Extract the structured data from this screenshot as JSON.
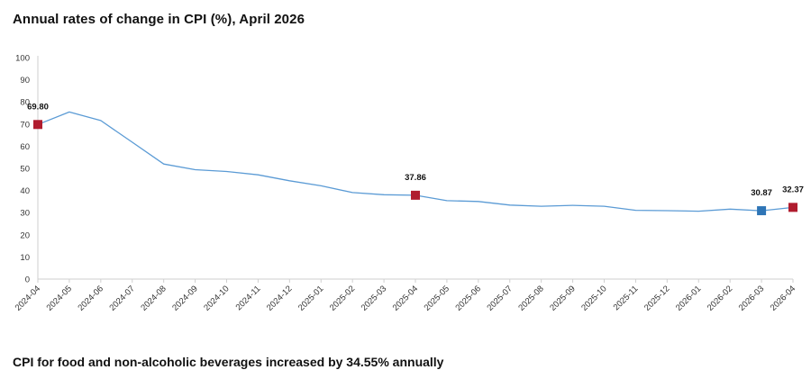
{
  "header": {
    "title": "Annual rates of change in CPI (%), April 2026"
  },
  "footer": {
    "caption": "CPI for food and non-alcoholic beverages increased by 34.55% annually"
  },
  "colors": {
    "line": "#5b9bd5",
    "marker_red": "#b01c2e",
    "marker_blue": "#2e75b6",
    "axis": "#cfcfcf",
    "tick_text": "#333333"
  },
  "chart_data": {
    "type": "line",
    "title": "Annual rates of change in CPI (%), April 2026",
    "xlabel": "",
    "ylabel": "",
    "ylim": [
      0,
      100
    ],
    "yticks": [
      0,
      10,
      20,
      30,
      40,
      50,
      60,
      70,
      80,
      90,
      100
    ],
    "grid": false,
    "legend": "none",
    "categories": [
      "2024-04",
      "2024-05",
      "2024-06",
      "2024-07",
      "2024-08",
      "2024-09",
      "2024-10",
      "2024-11",
      "2024-12",
      "2025-01",
      "2025-02",
      "2025-03",
      "2025-04",
      "2025-05",
      "2025-06",
      "2025-07",
      "2025-08",
      "2025-09",
      "2025-10",
      "2025-11",
      "2025-12",
      "2026-01",
      "2026-02",
      "2026-03",
      "2026-04"
    ],
    "series": [
      {
        "values": [
          69.8,
          75.45,
          71.6,
          61.78,
          51.97,
          49.38,
          48.58,
          47.09,
          44.38,
          42.12,
          39.05,
          38.1,
          37.86,
          35.41,
          35.05,
          33.4,
          32.87,
          33.29,
          32.87,
          31.07,
          30.89,
          30.65,
          31.59,
          30.87,
          32.37
        ]
      }
    ],
    "highlights": [
      {
        "index": 0,
        "label": "69.80",
        "color": "red"
      },
      {
        "index": 12,
        "label": "37.86",
        "color": "red"
      },
      {
        "index": 23,
        "label": "30.87",
        "color": "blue"
      },
      {
        "index": 24,
        "label": "32.37",
        "color": "red"
      }
    ]
  }
}
